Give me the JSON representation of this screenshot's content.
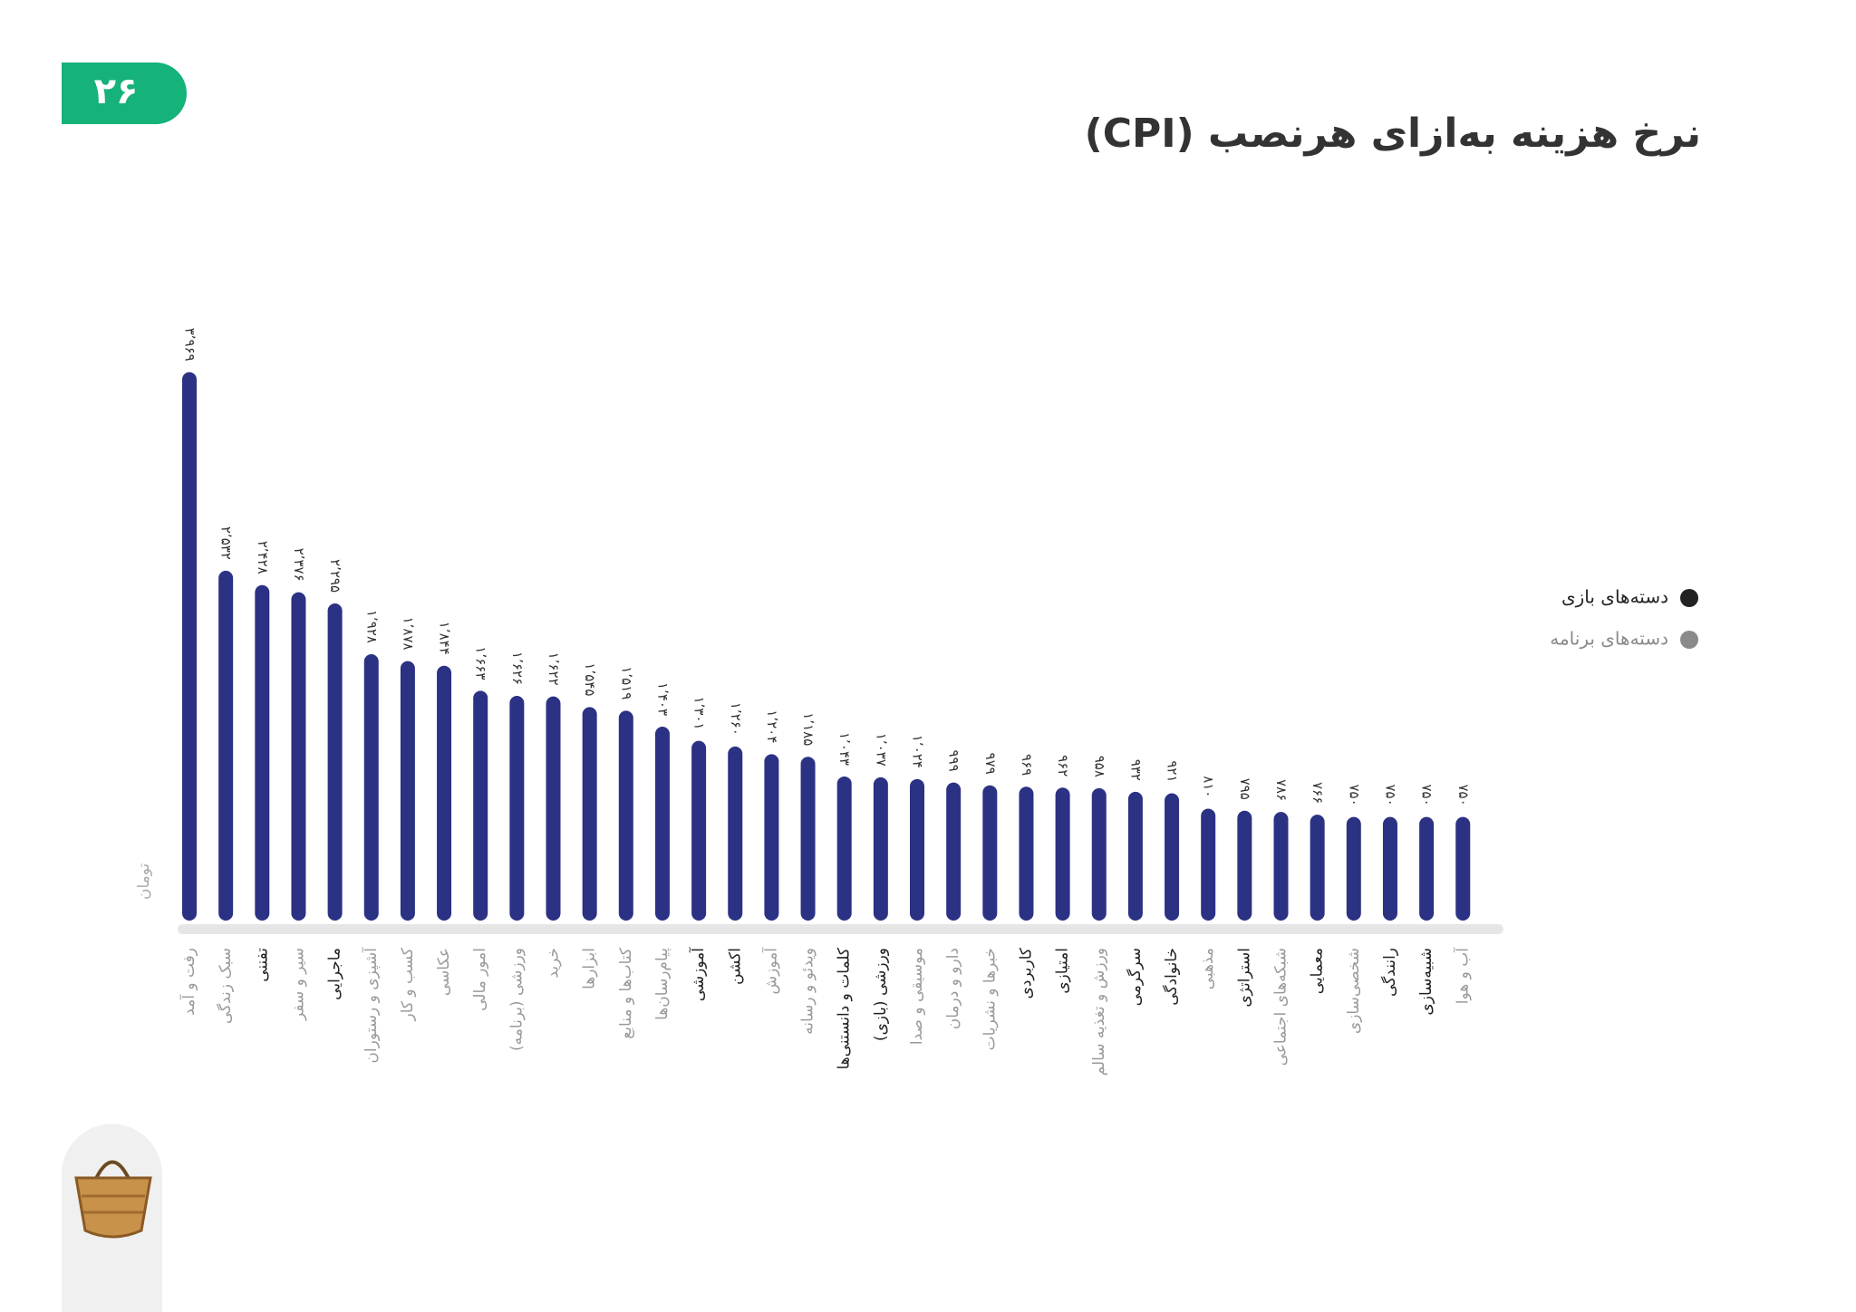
{
  "page_number": "۲۶",
  "chart_data": {
    "type": "bar",
    "title": "نرخ هزینه به‌ازای هرنصب (CPI)",
    "y_label": "تومان",
    "categories": [
      "رفت و آمد",
      "سبک زندگی",
      "تفننی",
      "سیر و سفر",
      "ماجرایی",
      "آشپزی و رستوران",
      "کسب و کار",
      "عکاسی",
      "امور مالی",
      "ورزشی (برنامه)",
      "خرید",
      "ابزارها",
      "کتاب‌ها و منابع",
      "پیام‌رسان‌ها",
      "آموزشی",
      "اکشن",
      "آموزش",
      "ویدئو و رسانه",
      "کلمات و دانستنی‌ها",
      "ورزشی (بازی)",
      "موسیقی و صدا",
      "دارو و درمان",
      "خبرها و نشریات",
      "کاربردی",
      "امتیازی",
      "ورزش و تغذیه سالم",
      "سرگرمی",
      "خانوادگی",
      "مذهبی",
      "استراتژی",
      "شبکه‌های اجتماعی",
      "معمایی",
      "شخصی‌سازی",
      "رانندگی",
      "شبیه‌سازی",
      "آب و هوا"
    ],
    "values": [
      3969,
      2532,
      2428,
      2376,
      2295,
      1928,
      1878,
      1844,
      1663,
      1626,
      1622,
      1545,
      1519,
      1403,
      1301,
      1260,
      1204,
      1185,
      1043,
      1037,
      1024,
      999,
      979,
      969,
      962,
      958,
      932,
      921,
      810,
      795,
      786,
      766,
      750,
      750,
      750,
      750
    ],
    "value_labels": [
      "۳٬۹۶۹",
      "۲٬۵۳۲",
      "۲٬۴۲۸",
      "۲٬۳۷۶",
      "۲٬۲۹۵",
      "۱٬۹۲۸",
      "۱٬۸۷۸",
      "۱٬۸۴۴",
      "۱٬۶۶۳",
      "۱٬۶۲۶",
      "۱٬۶۲۲",
      "۱٬۵۴۵",
      "۱٬۵۱۹",
      "۱٬۴۰۳",
      "۱٬۳۰۱",
      "۱٬۲۶۰",
      "۱٬۲۰۴",
      "۱٬۱۸۵",
      "۱٬۰۴۳",
      "۱٬۰۳۷",
      "۱٬۰۲۴",
      "۹۹۹",
      "۹۷۹",
      "۹۶۹",
      "۹۶۲",
      "۹۵۸",
      "۹۳۲",
      "۹۲۱",
      "۸۱۰",
      "۷۹۵",
      "۷۸۶",
      "۷۶۶",
      "۷۵۰",
      "۷۵۰",
      "۷۵۰",
      "۷۵۰"
    ],
    "category_label_colors": [
      "#9a9a9a",
      "#9a9a9a",
      "#222222",
      "#9a9a9a",
      "#222222",
      "#9a9a9a",
      "#9a9a9a",
      "#9a9a9a",
      "#9a9a9a",
      "#9a9a9a",
      "#9a9a9a",
      "#9a9a9a",
      "#9a9a9a",
      "#9a9a9a",
      "#222222",
      "#222222",
      "#9a9a9a",
      "#9a9a9a",
      "#222222",
      "#222222",
      "#9a9a9a",
      "#9a9a9a",
      "#9a9a9a",
      "#222222",
      "#222222",
      "#9a9a9a",
      "#222222",
      "#222222",
      "#9a9a9a",
      "#222222",
      "#9a9a9a",
      "#222222",
      "#9a9a9a",
      "#222222",
      "#222222",
      "#9a9a9a"
    ],
    "color": "#2b3183",
    "ylim": [
      0,
      4000
    ],
    "legend": [
      {
        "label": "دسته‌های بازی",
        "color": "#222222"
      },
      {
        "label": "دسته‌های برنامه",
        "color": "#8a8a8a"
      }
    ]
  }
}
